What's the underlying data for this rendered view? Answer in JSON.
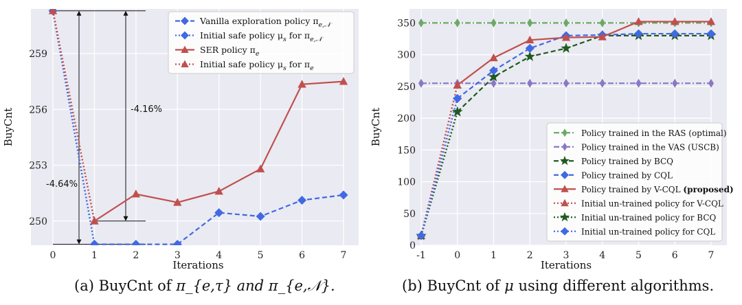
{
  "chart_data": [
    {
      "type": "line",
      "panel": "a",
      "xlabel": "Iterations",
      "ylabel": "BuyCnt",
      "x": [
        0,
        1,
        2,
        3,
        4,
        5,
        6,
        7
      ],
      "xticks": [
        "0",
        "1",
        "2",
        "3",
        "4",
        "5",
        "6",
        "7"
      ],
      "yticks": [
        250,
        253,
        256,
        259
      ],
      "ylim": [
        248.7,
        261.4
      ],
      "grid": true,
      "legend_position": "top-right",
      "series": [
        {
          "name": "Vanilla exploration policy π_{e,𝒩}",
          "label_main": "Vanilla exploration policy π",
          "label_sub": "e,𝒩",
          "label_tail": "",
          "color": "#4169e1",
          "marker": "diamond",
          "dash": "dashed",
          "x": [
            1,
            2,
            3,
            4,
            5,
            6,
            7
          ],
          "values": [
            248.75,
            248.75,
            248.75,
            250.45,
            250.25,
            251.12,
            251.4
          ]
        },
        {
          "name": "Initial safe policy μ_s for π_{e,𝒩}",
          "label_main": "Initial safe policy μ",
          "label_sub": "s",
          "label_tail": " for π",
          "label_sub2": "e,𝒩",
          "color": "#4169e1",
          "marker": "diamond",
          "dash": "dotted",
          "x": [
            0,
            1
          ],
          "values": [
            261.3,
            248.75
          ]
        },
        {
          "name": "SER policy π_e",
          "label_main": "SER policy π",
          "label_sub": "e",
          "label_tail": "",
          "color": "#c0504d",
          "marker": "triangle",
          "dash": "solid",
          "x": [
            1,
            2,
            3,
            4,
            5,
            6,
            7
          ],
          "values": [
            250,
            251.45,
            251,
            251.6,
            252.8,
            257.35,
            257.5
          ]
        },
        {
          "name": "Initial safe policy μ_s for π_e",
          "label_main": "Initial safe policy μ",
          "label_sub": "s",
          "label_tail": " for π",
          "label_sub2": "e",
          "color": "#c0504d",
          "marker": "triangle",
          "dash": "dotted",
          "x": [
            0,
            1
          ],
          "values": [
            261.3,
            250
          ]
        }
      ],
      "annotations": [
        {
          "text": "-4.16%"
        },
        {
          "text": "-4.64%"
        }
      ],
      "caption_prefix": "(a)  BuyCnt of ",
      "caption_math": "π_{e,τ} and π_{e,𝒩}."
    },
    {
      "type": "line",
      "panel": "b",
      "xlabel": "Iterations",
      "ylabel": "BuyCnt",
      "x": [
        -1,
        0,
        1,
        2,
        3,
        4,
        5,
        6,
        7
      ],
      "xticks": [
        "-1",
        "0",
        "1",
        "2",
        "3",
        "4",
        "5",
        "6",
        "7"
      ],
      "yticks": [
        0,
        50,
        100,
        150,
        200,
        250,
        300,
        350
      ],
      "ylim": [
        0,
        372
      ],
      "grid": true,
      "legend_position": "bottom-right",
      "series": [
        {
          "name": "Policy trained in the RAS (optimal)",
          "label_main": "Policy trained in the RAS (optimal)",
          "color": "#6aaa64",
          "marker": "thin_diamond",
          "dash": "dashdot",
          "x": [
            -1,
            0,
            1,
            2,
            3,
            4,
            5,
            6,
            7
          ],
          "values": [
            350,
            350,
            350,
            350,
            350,
            350,
            350,
            350,
            350
          ]
        },
        {
          "name": "Policy trained in the VAS (USCB)",
          "label_main": "Policy trained in the VAS (USCB)",
          "color": "#8a78c4",
          "marker": "thin_diamond",
          "dash": "dashdot",
          "x": [
            -1,
            0,
            1,
            2,
            3,
            4,
            5,
            6,
            7
          ],
          "values": [
            255,
            255,
            255,
            255,
            255,
            255,
            255,
            255,
            255
          ]
        },
        {
          "name": "Policy trained by BCQ",
          "label_main": "Policy trained by BCQ",
          "color": "#1f5a1f",
          "marker": "star",
          "dash": "dashed",
          "x": [
            0,
            1,
            2,
            3,
            4,
            5,
            6,
            7
          ],
          "values": [
            210,
            265,
            297,
            310,
            330,
            330,
            330,
            330
          ]
        },
        {
          "name": "Policy trained by CQL",
          "label_main": "Policy trained by CQL",
          "color": "#4169e1",
          "marker": "diamond",
          "dash": "dashed",
          "x": [
            0,
            1,
            2,
            3,
            4,
            5,
            6,
            7
          ],
          "values": [
            231,
            275,
            310,
            330,
            331,
            333,
            333,
            333
          ]
        },
        {
          "name": "Policy trained by V-CQL (proposed)",
          "label_main": "Policy trained by V-CQL ",
          "label_bold": "(proposed)",
          "color": "#c0504d",
          "marker": "triangle",
          "dash": "solid",
          "x": [
            0,
            1,
            2,
            3,
            4,
            5,
            6,
            7
          ],
          "values": [
            252,
            295,
            323,
            327,
            328,
            352,
            352,
            352
          ]
        },
        {
          "name": "Initial un-trained policy for V-CQL",
          "label_main": "Initial un-trained policy for V-CQL",
          "color": "#c0504d",
          "marker": "triangle",
          "dash": "dotted",
          "x": [
            -1,
            0
          ],
          "values": [
            15,
            252
          ]
        },
        {
          "name": "Initial un-trained policy for BCQ",
          "label_main": "Initial un-trained policy for BCQ",
          "color": "#1f5a1f",
          "marker": "star",
          "dash": "dotted",
          "x": [
            -1,
            0
          ],
          "values": [
            15,
            210
          ]
        },
        {
          "name": "Initial un-trained policy for CQL",
          "label_main": "Initial un-trained policy for CQL",
          "color": "#4169e1",
          "marker": "diamond",
          "dash": "dotted",
          "x": [
            -1,
            0
          ],
          "values": [
            15,
            231
          ]
        }
      ],
      "caption_prefix": "(b)  BuyCnt of ",
      "caption_math": "μ",
      "caption_suffix": " using different algorithms."
    }
  ]
}
